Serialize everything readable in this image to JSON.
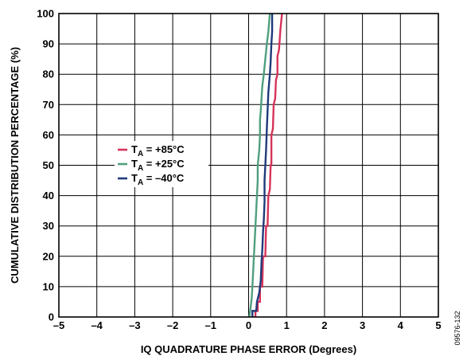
{
  "chart_data": {
    "type": "line",
    "title": "",
    "xlabel": "IQ QUADRATURE PHASE ERROR (Degrees)",
    "ylabel": "CUMULATIVE DISTRIBUTION PERCENTAGE (%)",
    "xlim": [
      -5,
      5
    ],
    "ylim": [
      0,
      100
    ],
    "x_ticks": [
      "–5",
      "–4",
      "–3",
      "–2",
      "–1",
      "0",
      "1",
      "2",
      "3",
      "4",
      "5"
    ],
    "y_ticks": [
      "0",
      "10",
      "20",
      "30",
      "40",
      "50",
      "60",
      "70",
      "80",
      "90",
      "100"
    ],
    "grid": true,
    "legend_position": "center-left",
    "figure_code": "09576-132",
    "series": [
      {
        "name": "T_A = +85°C",
        "label_main": "T",
        "label_sub": "A",
        "label_rest": " = +85°C",
        "color": "#d6335a",
        "points": [
          [
            0.18,
            0
          ],
          [
            0.18,
            2
          ],
          [
            0.24,
            2
          ],
          [
            0.24,
            5
          ],
          [
            0.3,
            5
          ],
          [
            0.3,
            10
          ],
          [
            0.36,
            10
          ],
          [
            0.38,
            20
          ],
          [
            0.44,
            20
          ],
          [
            0.46,
            30
          ],
          [
            0.5,
            30
          ],
          [
            0.52,
            40
          ],
          [
            0.56,
            42
          ],
          [
            0.58,
            50
          ],
          [
            0.6,
            50
          ],
          [
            0.6,
            60
          ],
          [
            0.64,
            62
          ],
          [
            0.66,
            70
          ],
          [
            0.7,
            72
          ],
          [
            0.72,
            78
          ],
          [
            0.76,
            80
          ],
          [
            0.76,
            86
          ],
          [
            0.8,
            88
          ],
          [
            0.84,
            95
          ],
          [
            0.88,
            100
          ]
        ]
      },
      {
        "name": "T_A = +25°C",
        "label_main": "T",
        "label_sub": "A",
        "label_rest": " = +25°C",
        "color": "#4f9f7f",
        "points": [
          [
            0.02,
            0
          ],
          [
            0.04,
            2
          ],
          [
            0.08,
            6
          ],
          [
            0.1,
            10
          ],
          [
            0.12,
            15
          ],
          [
            0.14,
            20
          ],
          [
            0.16,
            25
          ],
          [
            0.18,
            30
          ],
          [
            0.2,
            35
          ],
          [
            0.22,
            40
          ],
          [
            0.24,
            45
          ],
          [
            0.24,
            50
          ],
          [
            0.28,
            55
          ],
          [
            0.3,
            60
          ],
          [
            0.3,
            65
          ],
          [
            0.32,
            68
          ],
          [
            0.34,
            72
          ],
          [
            0.36,
            76
          ],
          [
            0.4,
            80
          ],
          [
            0.44,
            85
          ],
          [
            0.48,
            90
          ],
          [
            0.52,
            94
          ],
          [
            0.56,
            100
          ]
        ]
      },
      {
        "name": "T_A = –40°C",
        "label_main": "T",
        "label_sub": "A",
        "label_rest": " = –40°C",
        "color": "#1f3a7a",
        "points": [
          [
            0.1,
            0
          ],
          [
            0.1,
            2
          ],
          [
            0.2,
            2
          ],
          [
            0.22,
            5
          ],
          [
            0.28,
            8
          ],
          [
            0.32,
            12
          ],
          [
            0.34,
            18
          ],
          [
            0.36,
            22
          ],
          [
            0.38,
            28
          ],
          [
            0.4,
            32
          ],
          [
            0.42,
            38
          ],
          [
            0.42,
            45
          ],
          [
            0.44,
            50
          ],
          [
            0.46,
            55
          ],
          [
            0.48,
            62
          ],
          [
            0.5,
            68
          ],
          [
            0.52,
            74
          ],
          [
            0.56,
            80
          ],
          [
            0.58,
            84
          ],
          [
            0.6,
            90
          ],
          [
            0.62,
            94
          ],
          [
            0.62,
            100
          ]
        ]
      }
    ]
  }
}
